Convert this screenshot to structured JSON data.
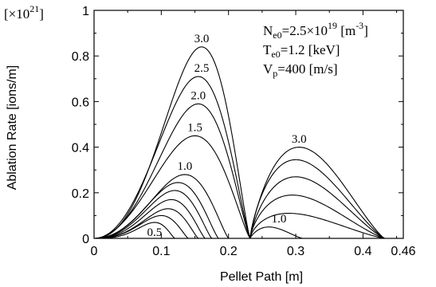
{
  "chart_data": {
    "type": "line",
    "title": "",
    "xlabel": "Pellet Path [m]",
    "ylabel": "Ablation Rate [ions/m]",
    "y_multiplier": "[×10",
    "y_multiplier_exp": "21",
    "y_multiplier_close": "]",
    "xlim": [
      0,
      0.46
    ],
    "ylim": [
      0,
      1.0
    ],
    "x_ticks": [
      0,
      0.1,
      0.2,
      0.3,
      0.4,
      0.46
    ],
    "x_tick_labels": [
      "0",
      "0.1",
      "0.2",
      "0.3",
      "0.4",
      "0.46"
    ],
    "y_ticks": [
      0,
      0.2,
      0.4,
      0.6,
      0.8,
      1.0
    ],
    "y_tick_labels": [
      "0",
      "0.2",
      "0.4",
      "0.6",
      "0.8",
      "1"
    ],
    "grid": false,
    "annotation": {
      "line1": "N",
      "line1_sub": "e0",
      "line1_rest": "=2.5×10",
      "line1_sup": "19",
      "line1_unit": " [m",
      "line1_unit_sup": "-3",
      "line1_end": "]",
      "line2": "T",
      "line2_sub": "e0",
      "line2_rest": "=1.2 [keV]",
      "line3": "V",
      "line3_sub": "p",
      "line3_rest": "=400 [m/s]"
    },
    "series": [
      {
        "label": "0.5",
        "segments": [
          {
            "x0": 0,
            "x1": 0.12,
            "peak": 0.07,
            "xpeak": 0.09
          }
        ]
      },
      {
        "label": "",
        "segments": [
          {
            "x0": 0,
            "x1": 0.14,
            "peak": 0.1,
            "xpeak": 0.1
          }
        ]
      },
      {
        "label": "",
        "segments": [
          {
            "x0": 0,
            "x1": 0.155,
            "peak": 0.13,
            "xpeak": 0.11
          }
        ]
      },
      {
        "label": "",
        "segments": [
          {
            "x0": 0,
            "x1": 0.165,
            "peak": 0.17,
            "xpeak": 0.115
          }
        ]
      },
      {
        "label": "",
        "segments": [
          {
            "x0": 0,
            "x1": 0.175,
            "peak": 0.21,
            "xpeak": 0.12
          }
        ]
      },
      {
        "label": "",
        "segments": [
          {
            "x0": 0,
            "x1": 0.185,
            "peak": 0.245,
            "xpeak": 0.125
          }
        ]
      },
      {
        "label": "1.0",
        "segments": [
          {
            "x0": 0,
            "x1": 0.2,
            "peak": 0.28,
            "xpeak": 0.135
          },
          {
            "x0": 0.232,
            "x1": 0.31,
            "peak": 0.05,
            "xpeak": 0.26
          }
        ]
      },
      {
        "label": "1.5",
        "segments": [
          {
            "x0": 0,
            "x1": 0.232,
            "peak": 0.45,
            "xpeak": 0.15
          },
          {
            "x0": 0.232,
            "x1": 0.432,
            "peak": 0.11,
            "xpeak": 0.29
          }
        ]
      },
      {
        "label": "2.0",
        "segments": [
          {
            "x0": 0,
            "x1": 0.232,
            "peak": 0.59,
            "xpeak": 0.155
          },
          {
            "x0": 0.232,
            "x1": 0.432,
            "peak": 0.19,
            "xpeak": 0.295
          }
        ]
      },
      {
        "label": "2.5",
        "segments": [
          {
            "x0": 0,
            "x1": 0.232,
            "peak": 0.71,
            "xpeak": 0.155
          },
          {
            "x0": 0.232,
            "x1": 0.432,
            "peak": 0.27,
            "xpeak": 0.3
          }
        ]
      },
      {
        "label": "",
        "segments": [
          {
            "x0": 0.232,
            "x1": 0.432,
            "peak": 0.345,
            "xpeak": 0.3
          }
        ]
      },
      {
        "label": "3.0",
        "segments": [
          {
            "x0": 0,
            "x1": 0.232,
            "peak": 0.84,
            "xpeak": 0.16
          },
          {
            "x0": 0.232,
            "x1": 0.432,
            "peak": 0.4,
            "xpeak": 0.305
          }
        ]
      }
    ],
    "curve_labels": [
      {
        "text": "3.0",
        "x": 0.16,
        "y": 0.86
      },
      {
        "text": "2.5",
        "x": 0.16,
        "y": 0.73
      },
      {
        "text": "2.0",
        "x": 0.155,
        "y": 0.61
      },
      {
        "text": "1.5",
        "x": 0.15,
        "y": 0.47
      },
      {
        "text": "1.0",
        "x": 0.135,
        "y": 0.3
      },
      {
        "text": "0.5",
        "x": 0.09,
        "y": 0.01
      },
      {
        "text": "3.0",
        "x": 0.305,
        "y": 0.42
      },
      {
        "text": "1.0",
        "x": 0.275,
        "y": 0.07
      }
    ]
  }
}
